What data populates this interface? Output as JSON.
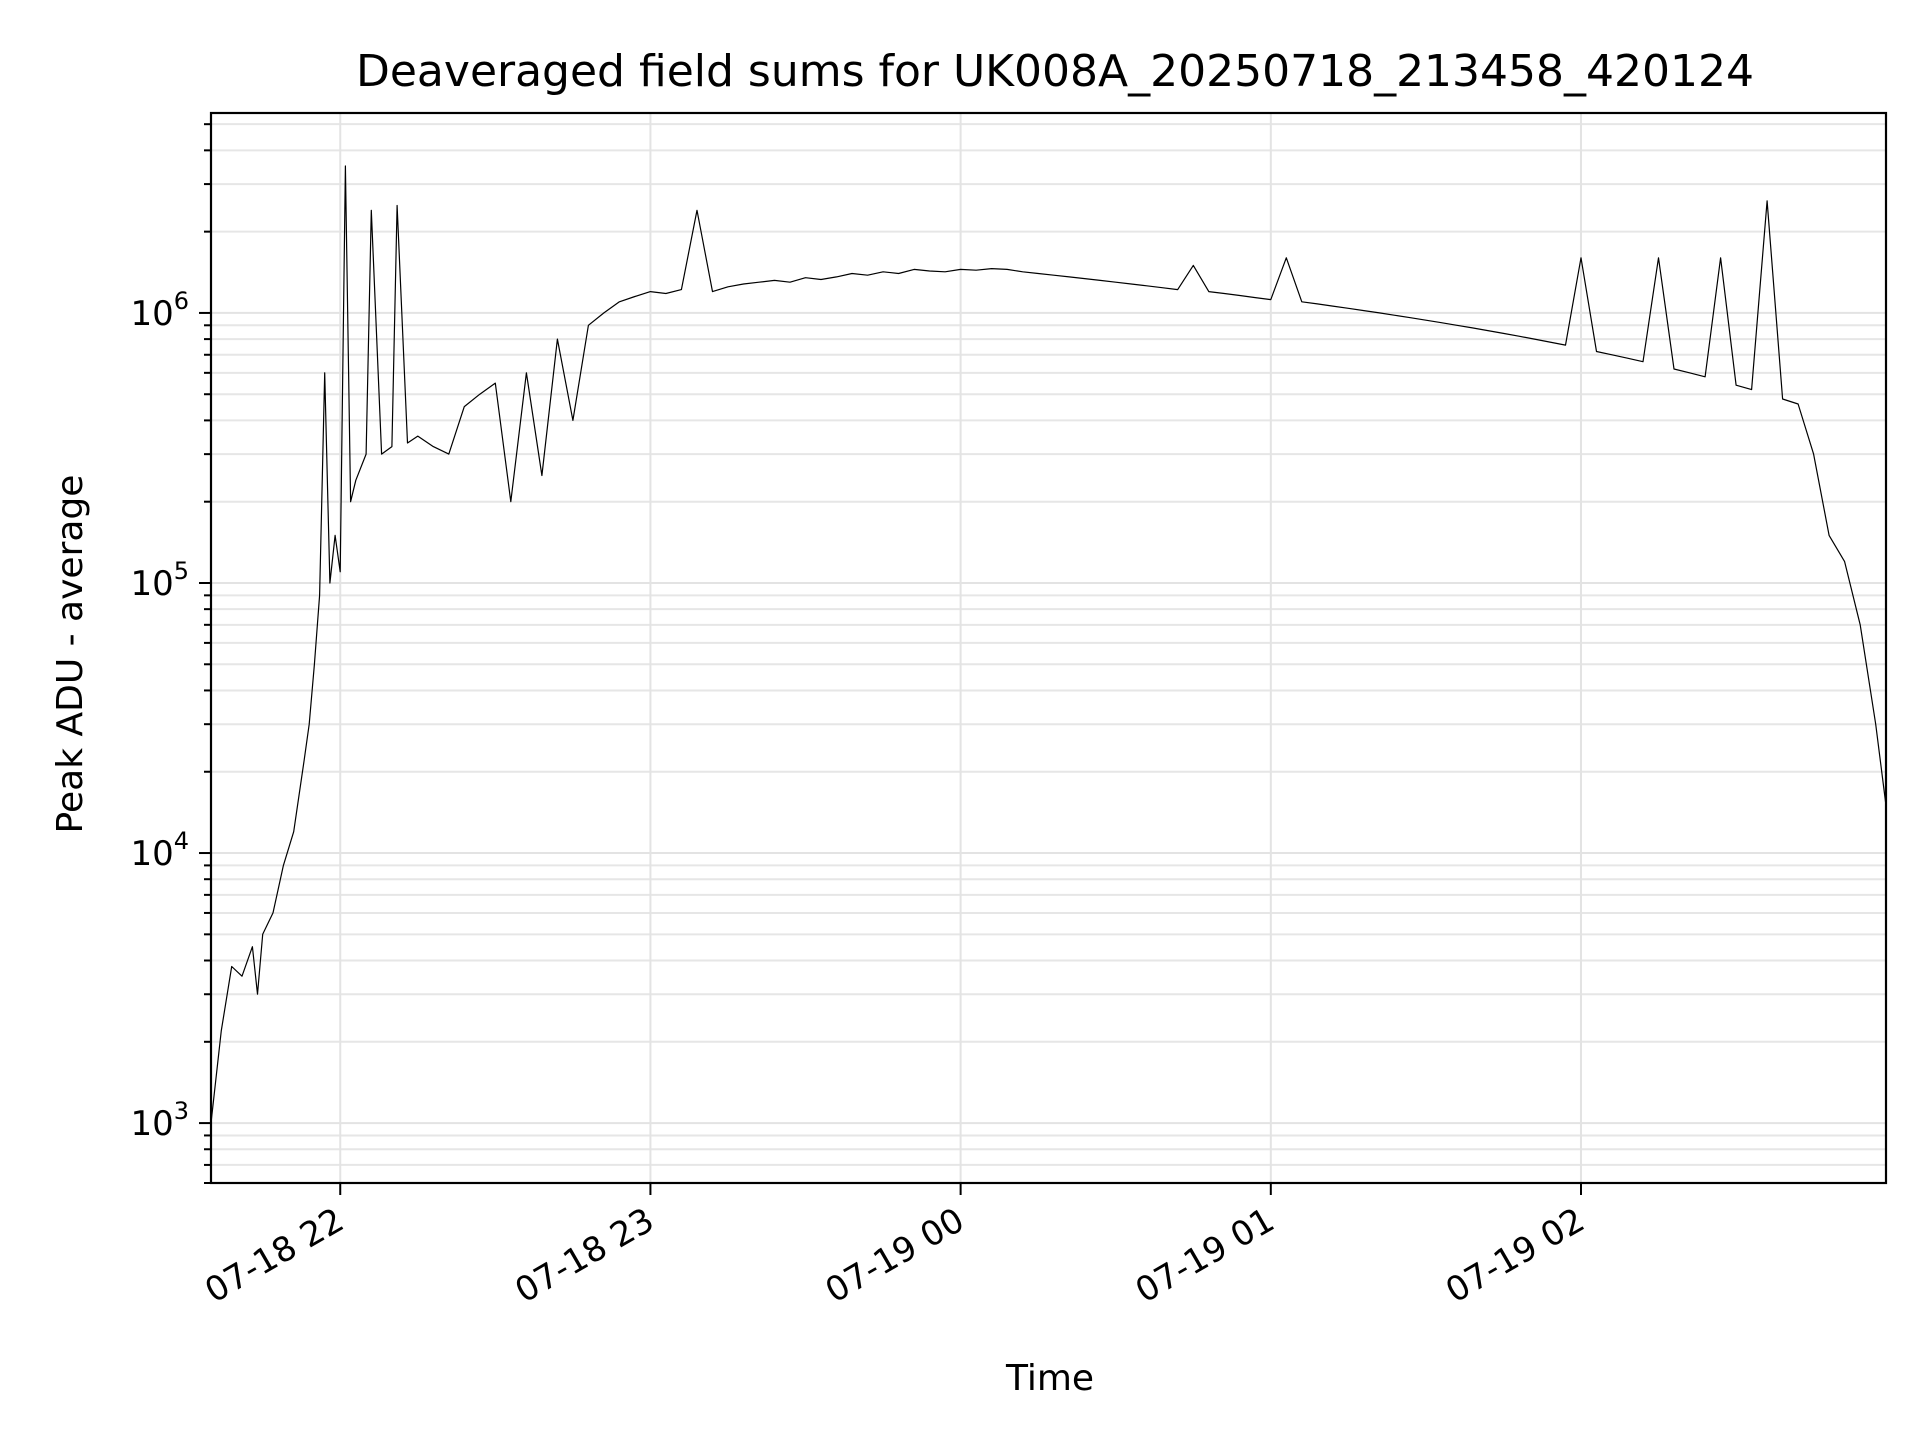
{
  "chart_data": {
    "type": "line",
    "title": "Deaveraged field sums for UK008A_20250718_213458_420124",
    "xlabel": "Time",
    "ylabel": "Peak ADU - average",
    "yscale": "log",
    "xlim": [
      "2025-07-18 21:35",
      "2025-07-19 02:59"
    ],
    "ylim": [
      600,
      5500000
    ],
    "grid": true,
    "x_ticks": [
      {
        "label": "07-18 22",
        "value": "2025-07-18 22:00"
      },
      {
        "label": "07-18 23",
        "value": "2025-07-18 23:00"
      },
      {
        "label": "07-19 00",
        "value": "2025-07-19 00:00"
      },
      {
        "label": "07-19 01",
        "value": "2025-07-19 01:00"
      },
      {
        "label": "07-19 02",
        "value": "2025-07-19 02:00"
      }
    ],
    "y_ticks": [
      {
        "base": "10",
        "exp": "3",
        "value": 1000
      },
      {
        "base": "10",
        "exp": "4",
        "value": 10000
      },
      {
        "base": "10",
        "exp": "5",
        "value": 100000
      },
      {
        "base": "10",
        "exp": "6",
        "value": 1000000
      }
    ],
    "series": [
      {
        "color": "#000000",
        "x": [
          "2025-07-18 21:35",
          "2025-07-18 21:37",
          "2025-07-18 21:39",
          "2025-07-18 21:41",
          "2025-07-18 21:43",
          "2025-07-18 21:44",
          "2025-07-18 21:45",
          "2025-07-18 21:47",
          "2025-07-18 21:49",
          "2025-07-18 21:51",
          "2025-07-18 21:53",
          "2025-07-18 21:54",
          "2025-07-18 21:55",
          "2025-07-18 21:56",
          "2025-07-18 21:57",
          "2025-07-18 21:58",
          "2025-07-18 21:59",
          "2025-07-18 22:00",
          "2025-07-18 22:01",
          "2025-07-18 22:02",
          "2025-07-18 22:03",
          "2025-07-18 22:05",
          "2025-07-18 22:06",
          "2025-07-18 22:08",
          "2025-07-18 22:10",
          "2025-07-18 22:11",
          "2025-07-18 22:13",
          "2025-07-18 22:15",
          "2025-07-18 22:18",
          "2025-07-18 22:21",
          "2025-07-18 22:24",
          "2025-07-18 22:27",
          "2025-07-18 22:30",
          "2025-07-18 22:33",
          "2025-07-18 22:36",
          "2025-07-18 22:39",
          "2025-07-18 22:42",
          "2025-07-18 22:45",
          "2025-07-18 22:48",
          "2025-07-18 22:51",
          "2025-07-18 22:54",
          "2025-07-18 22:57",
          "2025-07-18 23:00",
          "2025-07-18 23:03",
          "2025-07-18 23:06",
          "2025-07-18 23:09",
          "2025-07-18 23:12",
          "2025-07-18 23:15",
          "2025-07-18 23:18",
          "2025-07-18 23:21",
          "2025-07-18 23:24",
          "2025-07-18 23:27",
          "2025-07-18 23:30",
          "2025-07-18 23:33",
          "2025-07-18 23:36",
          "2025-07-18 23:39",
          "2025-07-18 23:42",
          "2025-07-18 23:45",
          "2025-07-18 23:48",
          "2025-07-18 23:51",
          "2025-07-18 23:54",
          "2025-07-18 23:57",
          "2025-07-19 00:00",
          "2025-07-19 00:03",
          "2025-07-19 00:06",
          "2025-07-19 00:09",
          "2025-07-19 00:12",
          "2025-07-19 00:15",
          "2025-07-19 00:18",
          "2025-07-19 00:21",
          "2025-07-19 00:24",
          "2025-07-19 00:27",
          "2025-07-19 00:30",
          "2025-07-19 00:33",
          "2025-07-19 00:36",
          "2025-07-19 00:39",
          "2025-07-19 00:42",
          "2025-07-19 00:45",
          "2025-07-19 00:48",
          "2025-07-19 00:51",
          "2025-07-19 00:54",
          "2025-07-19 00:57",
          "2025-07-19 01:00",
          "2025-07-19 01:03",
          "2025-07-19 01:06",
          "2025-07-19 01:09",
          "2025-07-19 01:12",
          "2025-07-19 01:15",
          "2025-07-19 01:18",
          "2025-07-19 01:21",
          "2025-07-19 01:24",
          "2025-07-19 01:27",
          "2025-07-19 01:30",
          "2025-07-19 01:33",
          "2025-07-19 01:36",
          "2025-07-19 01:39",
          "2025-07-19 01:42",
          "2025-07-19 01:45",
          "2025-07-19 01:48",
          "2025-07-19 01:51",
          "2025-07-19 01:54",
          "2025-07-19 01:57",
          "2025-07-19 02:00",
          "2025-07-19 02:03",
          "2025-07-19 02:06",
          "2025-07-19 02:09",
          "2025-07-19 02:12",
          "2025-07-19 02:15",
          "2025-07-19 02:18",
          "2025-07-19 02:21",
          "2025-07-19 02:24",
          "2025-07-19 02:27",
          "2025-07-19 02:30",
          "2025-07-19 02:33",
          "2025-07-19 02:36",
          "2025-07-19 02:39",
          "2025-07-19 02:42",
          "2025-07-19 02:45",
          "2025-07-19 02:48",
          "2025-07-19 02:51",
          "2025-07-19 02:54",
          "2025-07-19 02:57",
          "2025-07-19 02:59"
        ],
        "y": [
          1000,
          2200,
          3800,
          3500,
          4500,
          3000,
          5000,
          6000,
          9000,
          12000,
          22000,
          30000,
          50000,
          90000,
          600000,
          100000,
          150000,
          110000,
          3500000,
          200000,
          240000,
          300000,
          2400000,
          300000,
          320000,
          2500000,
          330000,
          350000,
          320000,
          300000,
          450000,
          500000,
          550000,
          200000,
          600000,
          250000,
          800000,
          400000,
          900000,
          1000000,
          1100000,
          1150000,
          1200000,
          1180000,
          1220000,
          2400000,
          1200000,
          1250000,
          1280000,
          1300000,
          1320000,
          1300000,
          1350000,
          1330000,
          1360000,
          1400000,
          1380000,
          1420000,
          1400000,
          1450000,
          1430000,
          1420000,
          1450000,
          1440000,
          1460000,
          1450000,
          1420000,
          1400000,
          1380000,
          1360000,
          1340000,
          1320000,
          1300000,
          1280000,
          1260000,
          1240000,
          1220000,
          1500000,
          1200000,
          1180000,
          1160000,
          1140000,
          1120000,
          1600000,
          1100000,
          1080000,
          1060000,
          1040000,
          1020000,
          1000000,
          980000,
          960000,
          940000,
          920000,
          900000,
          880000,
          860000,
          840000,
          820000,
          800000,
          780000,
          760000,
          1600000,
          720000,
          700000,
          680000,
          660000,
          1600000,
          620000,
          600000,
          580000,
          1600000,
          540000,
          520000,
          2600000,
          480000,
          460000,
          300000,
          150000,
          120000,
          70000,
          30000,
          15000
        ]
      }
    ]
  }
}
